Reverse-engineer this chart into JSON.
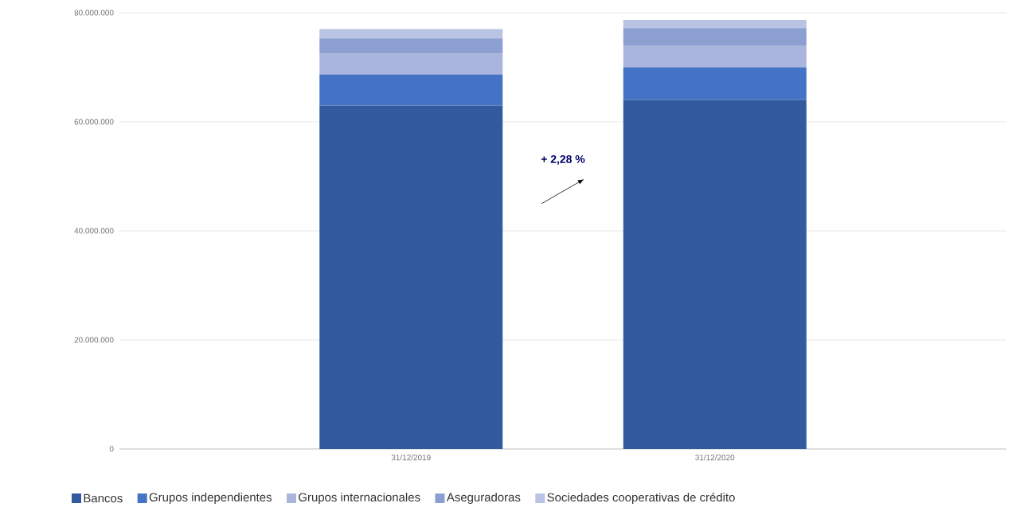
{
  "chart_data": {
    "type": "bar",
    "stacked": true,
    "categories": [
      "31/12/2019",
      "31/12/2020"
    ],
    "series": [
      {
        "name": "Bancos",
        "color": "#335a9e",
        "values": [
          63000000,
          64000000
        ]
      },
      {
        "name": "Grupos independientes",
        "color": "#4472c4",
        "values": [
          5700000,
          6000000
        ]
      },
      {
        "name": "Grupos internacionales",
        "color": "#a9b5dc",
        "values": [
          3800000,
          3900000
        ]
      },
      {
        "name": "Aseguradoras",
        "color": "#8c9fd1",
        "values": [
          2800000,
          3300000
        ]
      },
      {
        "name": "Sociedades cooperativas de crédito",
        "color": "#b9c3e4",
        "values": [
          1700000,
          1500000
        ]
      }
    ],
    "ylim": [
      0,
      80000000
    ],
    "yticks": [
      0,
      {
        "value": 20000000,
        "label": "20.000.000"
      },
      {
        "value": 40000000,
        "label": "40.000.000"
      },
      {
        "value": 60000000,
        "label": "60.000.000"
      },
      {
        "value": 80000000,
        "label": "80.000.000"
      }
    ],
    "grid": "y",
    "legend": "bottom",
    "annotations": [
      "+ 2,28 %"
    ]
  }
}
